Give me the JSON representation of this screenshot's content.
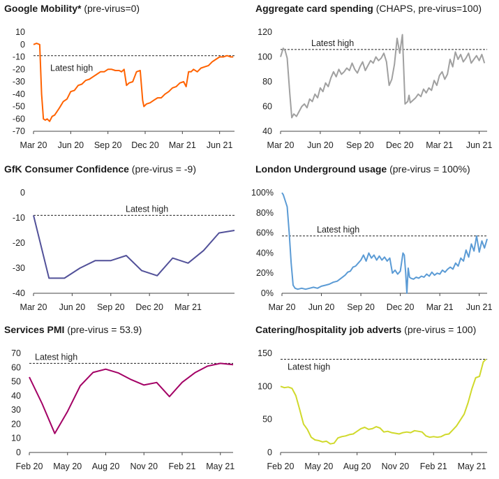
{
  "chart_data": [
    {
      "type": "line",
      "title": "Google Mobility*",
      "subtitle": "(pre-virus=0)",
      "xlabel": "",
      "ylabel": "",
      "x_ticks": [
        "Mar 20",
        "Jun 20",
        "Sep 20",
        "Dec 20",
        "Mar 21",
        "Jun 21"
      ],
      "x_tick_pos": [
        0,
        3,
        6,
        9,
        12,
        15
      ],
      "xlim": [
        0,
        16.2
      ],
      "y_ticks": [
        "10",
        "0",
        "-10",
        "-20",
        "-30",
        "-40",
        "-50",
        "-60",
        "-70"
      ],
      "ylim": [
        -70,
        10
      ],
      "reference": {
        "label": "Latest high",
        "value": -9
      },
      "series": [
        {
          "color": "#ff6200",
          "x": [
            0,
            0.25,
            0.5,
            0.65,
            0.8,
            0.95,
            1.1,
            1.3,
            1.5,
            1.7,
            1.9,
            2.1,
            2.4,
            2.7,
            3.0,
            3.3,
            3.6,
            3.9,
            4.2,
            4.5,
            4.8,
            5.1,
            5.4,
            5.7,
            6.0,
            6.3,
            6.6,
            6.9,
            7.1,
            7.3,
            7.5,
            7.7,
            8.0,
            8.3,
            8.6,
            8.8,
            8.9,
            9.1,
            9.4,
            9.7,
            10.0,
            10.3,
            10.6,
            10.9,
            11.2,
            11.5,
            11.8,
            12.1,
            12.3,
            12.5,
            12.7,
            12.9,
            13.2,
            13.5,
            13.8,
            14.1,
            14.4,
            14.7,
            15.0,
            15.3,
            15.6,
            15.9,
            16.1
          ],
          "y": [
            0,
            1,
            0,
            -40,
            -60,
            -61,
            -60,
            -62,
            -58,
            -57,
            -54,
            -51,
            -46,
            -44,
            -38,
            -37,
            -33,
            -32,
            -29,
            -28,
            -26,
            -24,
            -22,
            -22,
            -20,
            -20,
            -21,
            -21,
            -22,
            -20,
            -33,
            -31,
            -30,
            -22,
            -21,
            -45,
            -50,
            -48,
            -47,
            -45,
            -43,
            -43,
            -40,
            -38,
            -35,
            -34,
            -31,
            -30,
            -34,
            -22,
            -22,
            -20,
            -22,
            -19,
            -18,
            -17,
            -14,
            -12,
            -10,
            -10,
            -9,
            -10,
            -10
          ]
        }
      ]
    },
    {
      "type": "line",
      "title": "Aggregate card spending",
      "subtitle": "(CHAPS, pre-virus=100)",
      "xlabel": "",
      "ylabel": "",
      "x_ticks": [
        "Mar 20",
        "Jun 20",
        "Sep 20",
        "Dec 20",
        "Mar 21",
        "Jun 21"
      ],
      "x_tick_pos": [
        0,
        3,
        6,
        9,
        12,
        15
      ],
      "xlim": [
        0,
        15.6
      ],
      "y_ticks": [
        "120",
        "100",
        "80",
        "60",
        "40"
      ],
      "ylim": [
        40,
        120
      ],
      "reference": {
        "label": "Latest high",
        "value": 106
      },
      "series": [
        {
          "color": "#a0a0a0",
          "x": [
            0,
            0.2,
            0.35,
            0.5,
            0.7,
            0.85,
            1.0,
            1.2,
            1.4,
            1.6,
            1.8,
            2.0,
            2.2,
            2.4,
            2.6,
            2.8,
            3.0,
            3.2,
            3.4,
            3.6,
            3.8,
            4.0,
            4.2,
            4.4,
            4.6,
            4.8,
            5.0,
            5.2,
            5.4,
            5.6,
            5.8,
            6.0,
            6.2,
            6.4,
            6.6,
            6.8,
            7.0,
            7.2,
            7.4,
            7.6,
            7.8,
            8.0,
            8.2,
            8.4,
            8.6,
            8.8,
            9.0,
            9.2,
            9.4,
            9.6,
            9.7,
            9.8,
            10.0,
            10.2,
            10.4,
            10.6,
            10.8,
            11.0,
            11.2,
            11.4,
            11.6,
            11.8,
            12.0,
            12.2,
            12.4,
            12.6,
            12.8,
            13.0,
            13.2,
            13.4,
            13.6,
            13.8,
            14.0,
            14.2,
            14.4,
            14.6,
            14.8,
            15.0,
            15.2,
            15.4
          ],
          "y": [
            100,
            107,
            105,
            99,
            70,
            51,
            54,
            52,
            56,
            60,
            62,
            59,
            66,
            64,
            70,
            67,
            75,
            72,
            79,
            76,
            83,
            88,
            84,
            90,
            86,
            88,
            91,
            89,
            95,
            90,
            87,
            92,
            96,
            89,
            93,
            97,
            95,
            100,
            97,
            99,
            103,
            96,
            77,
            82,
            94,
            115,
            103,
            118,
            62,
            64,
            69,
            63,
            65,
            67,
            70,
            68,
            74,
            71,
            75,
            73,
            81,
            77,
            85,
            88,
            82,
            86,
            98,
            92,
            104,
            98,
            102,
            96,
            99,
            103,
            95,
            98,
            101,
            97,
            102,
            95
          ]
        }
      ]
    },
    {
      "type": "line",
      "title": "GfK Consumer Confidence",
      "subtitle": "(pre-virus = -9)",
      "xlabel": "",
      "ylabel": "",
      "x_ticks": [
        "Mar 20",
        "Jun 20",
        "Sep 20",
        "Dec 20",
        "Mar 21"
      ],
      "x_tick_pos": [
        0,
        3,
        6,
        9,
        12
      ],
      "xlim": [
        0,
        15.6
      ],
      "y_ticks": [
        "0",
        "-10",
        "-20",
        "-30",
        "-40"
      ],
      "ylim": [
        -40,
        0
      ],
      "reference": {
        "label": "Latest high",
        "value": -9
      },
      "series": [
        {
          "color": "#525199",
          "x": [
            0,
            1.2,
            2.4,
            3.6,
            4.8,
            6.0,
            7.2,
            8.4,
            9.6,
            10.8,
            12.0,
            13.2,
            14.4,
            15.6
          ],
          "y": [
            -9,
            -34,
            -34,
            -30,
            -27,
            -27,
            -25,
            -31,
            -33,
            -26,
            -28,
            -23,
            -16,
            -15
          ]
        }
      ]
    },
    {
      "type": "line",
      "title": "London Underground usage",
      "subtitle": "(pre-virus = 100%)",
      "xlabel": "",
      "ylabel": "",
      "x_ticks": [
        "Mar 20",
        "Jun 20",
        "Sep 20",
        "Dec 20",
        "Mar 21",
        "Jun 21"
      ],
      "x_tick_pos": [
        0,
        3,
        6,
        9,
        12,
        15
      ],
      "xlim": [
        0,
        15.6
      ],
      "y_ticks": [
        "100%",
        "80%",
        "60%",
        "40%",
        "20%",
        "0%"
      ],
      "ylim": [
        0,
        100
      ],
      "reference": {
        "label": "Latest high",
        "value": 57
      },
      "series": [
        {
          "color": "#5b9bd5",
          "x": [
            0,
            0.1,
            0.25,
            0.4,
            0.55,
            0.7,
            0.85,
            1.0,
            1.2,
            1.5,
            1.8,
            2.1,
            2.4,
            2.7,
            3.0,
            3.3,
            3.6,
            3.9,
            4.2,
            4.5,
            4.8,
            5.0,
            5.2,
            5.4,
            5.6,
            5.8,
            6.0,
            6.2,
            6.4,
            6.6,
            6.8,
            7.0,
            7.2,
            7.4,
            7.6,
            7.8,
            8.0,
            8.2,
            8.4,
            8.6,
            8.8,
            9.0,
            9.2,
            9.3,
            9.4,
            9.5,
            9.6,
            9.7,
            9.8,
            10.0,
            10.2,
            10.4,
            10.6,
            10.8,
            11.0,
            11.2,
            11.4,
            11.6,
            11.8,
            12.0,
            12.2,
            12.4,
            12.6,
            12.8,
            13.0,
            13.2,
            13.4,
            13.6,
            13.8,
            14.0,
            14.2,
            14.4,
            14.6,
            14.8,
            15.0,
            15.2,
            15.4,
            15.6
          ],
          "y": [
            100,
            98,
            92,
            86,
            60,
            30,
            8,
            5,
            4,
            5,
            4,
            5,
            6,
            5,
            7,
            8,
            9,
            11,
            12,
            15,
            18,
            21,
            22,
            26,
            27,
            30,
            33,
            38,
            32,
            40,
            35,
            38,
            33,
            37,
            33,
            36,
            32,
            35,
            20,
            23,
            19,
            22,
            40,
            38,
            21,
            0,
            25,
            16,
            15,
            14,
            16,
            15,
            17,
            16,
            19,
            17,
            21,
            18,
            20,
            19,
            23,
            21,
            24,
            26,
            24,
            30,
            27,
            35,
            32,
            43,
            36,
            49,
            42,
            57,
            41,
            52,
            45,
            54
          ]
        }
      ]
    },
    {
      "type": "line",
      "title": "Services PMI",
      "subtitle": "(pre-virus = 53.9)",
      "xlabel": "",
      "ylabel": "",
      "x_ticks": [
        "Feb 20",
        "May 20",
        "Aug 20",
        "Nov 20",
        "Feb 21",
        "May 21"
      ],
      "x_tick_pos": [
        0,
        3,
        6,
        9,
        12,
        15
      ],
      "xlim": [
        0,
        16
      ],
      "y_ticks": [
        "70",
        "60",
        "50",
        "40",
        "30",
        "20",
        "10",
        "0"
      ],
      "ylim": [
        0,
        70
      ],
      "reference": {
        "label": "Latest high",
        "value": 62.9
      },
      "series": [
        {
          "color": "#a30065",
          "x": [
            0,
            1,
            2,
            3,
            4,
            5,
            6,
            7,
            8,
            9,
            10,
            11,
            12,
            13,
            14,
            15,
            16
          ],
          "y": [
            53.2,
            34.5,
            13.4,
            29.0,
            47.1,
            56.5,
            58.8,
            56.1,
            51.4,
            47.6,
            49.4,
            39.5,
            49.5,
            56.3,
            61.0,
            62.9,
            62.0
          ]
        }
      ]
    },
    {
      "type": "line",
      "title": "Catering/hospitality job adverts",
      "subtitle": "(pre-virus = 100)",
      "xlabel": "",
      "ylabel": "",
      "x_ticks": [
        "Feb 20",
        "May 20",
        "Aug 20",
        "Nov 20",
        "Feb 21",
        "May 21"
      ],
      "x_tick_pos": [
        0,
        3,
        6,
        9,
        12,
        15
      ],
      "xlim": [
        0,
        16.2
      ],
      "y_ticks": [
        "150",
        "100",
        "50",
        "0"
      ],
      "ylim": [
        0,
        150
      ],
      "reference": {
        "label": "Latest high",
        "value": 141
      },
      "series": [
        {
          "color": "#d0d92b",
          "x": [
            0,
            0.3,
            0.6,
            0.9,
            1.2,
            1.5,
            1.8,
            2.1,
            2.4,
            2.7,
            3.0,
            3.3,
            3.6,
            3.9,
            4.2,
            4.5,
            4.8,
            5.1,
            5.4,
            5.7,
            6.0,
            6.3,
            6.6,
            6.9,
            7.2,
            7.5,
            7.8,
            8.1,
            8.4,
            8.7,
            9.0,
            9.3,
            9.6,
            9.9,
            10.2,
            10.5,
            10.8,
            11.1,
            11.4,
            11.7,
            12.0,
            12.3,
            12.6,
            12.9,
            13.2,
            13.5,
            13.8,
            14.1,
            14.4,
            14.7,
            15.0,
            15.3,
            15.6,
            15.9,
            16.1
          ],
          "y": [
            100,
            98,
            99,
            97,
            86,
            65,
            43,
            35,
            23,
            19,
            18,
            16,
            17,
            13,
            14,
            22,
            24,
            25,
            27,
            28,
            32,
            36,
            38,
            35,
            36,
            39,
            37,
            31,
            32,
            30,
            29,
            28,
            30,
            31,
            30,
            33,
            32,
            31,
            25,
            23,
            24,
            23,
            24,
            27,
            28,
            34,
            40,
            49,
            58,
            75,
            96,
            113,
            115,
            137,
            141
          ]
        }
      ]
    }
  ]
}
